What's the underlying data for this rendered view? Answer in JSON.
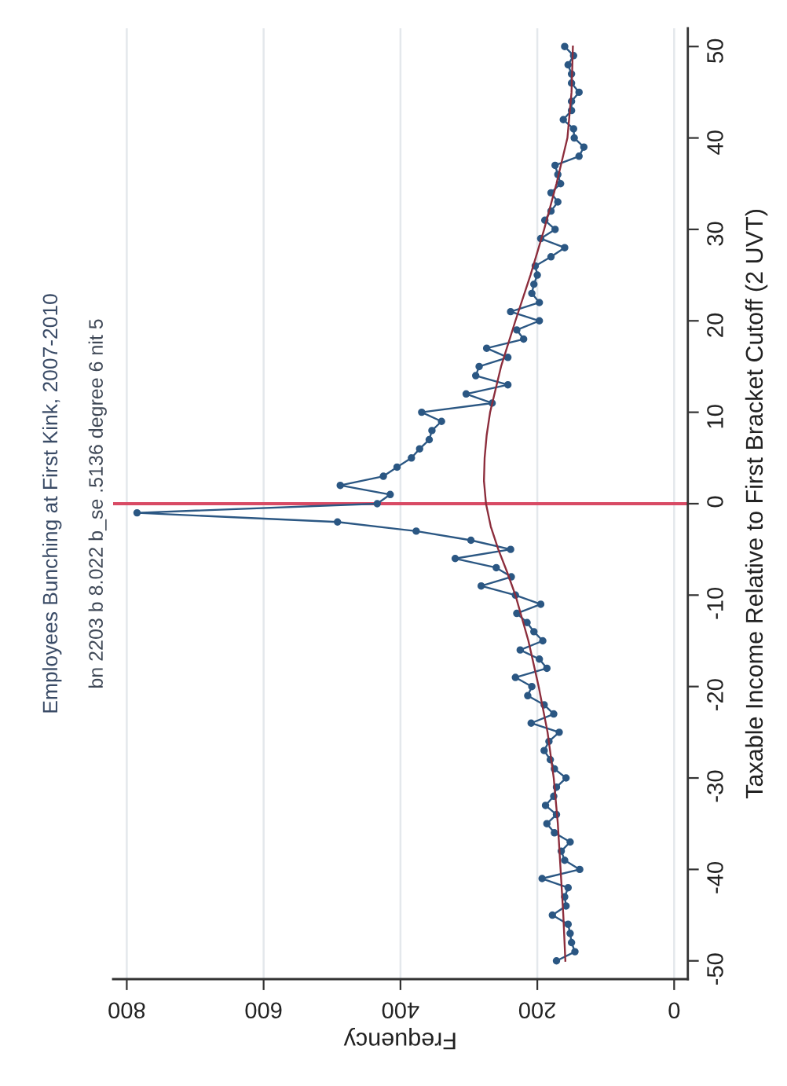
{
  "chart_data": {
    "type": "line",
    "title": "Employees Bunching at First Kink, 2007-2010",
    "subtitle": "bn 2203 b 8.022 b_se .5136 degree 6 nit 5",
    "xlabel": "Frequency",
    "ylabel": "Taxable Income Relative to First Bracket Cutoff (2 UVT)",
    "xlim": [
      820,
      -20
    ],
    "xticks": [
      0,
      200,
      400,
      600,
      800
    ],
    "ylim": [
      -52,
      52
    ],
    "yticks": [
      -50,
      -40,
      -30,
      -20,
      -10,
      0,
      10,
      20,
      30,
      40,
      50
    ],
    "grid": "x",
    "series": [
      {
        "color": "#2b5783",
        "marker": "circle",
        "x": [
          172,
          145,
          150,
          152,
          155,
          178,
          158,
          160,
          155,
          193,
          138,
          160,
          165,
          152,
          175,
          186,
          172,
          188,
          176,
          172,
          158,
          175,
          181,
          190,
          183,
          168,
          209,
          176,
          190,
          214,
          208,
          232,
          186,
          197,
          225,
          192,
          205,
          215,
          230,
          195,
          232,
          282,
          238,
          260,
          320,
          239,
          297,
          377,
          492,
          785,
          434,
          415,
          488,
          425,
          405,
          384,
          372,
          358,
          354,
          340,
          369,
          266,
          304,
          243,
          290,
          285,
          243,
          274,
          220,
          230,
          197,
          239,
          197,
          208,
          205,
          200,
          203,
          180,
          160,
          195,
          174,
          189,
          180,
          170,
          180,
          166,
          170,
          174,
          139,
          132,
          146,
          147,
          162,
          150,
          150,
          139,
          150,
          150,
          155,
          147,
          160
        ],
        "values": [
          -50,
          -49,
          -48,
          -47,
          -46,
          -45,
          -44,
          -43,
          -42,
          -41,
          -40,
          -39,
          -38,
          -37,
          -36,
          -35,
          -34,
          -33,
          -32,
          -31,
          -30,
          -29,
          -28,
          -27,
          -26,
          -25,
          -24,
          -23,
          -22,
          -21,
          -20,
          -19,
          -18,
          -17,
          -16,
          -15,
          -14,
          -13,
          -12,
          -11,
          -10,
          -9,
          -8,
          -7,
          -6,
          -5,
          -4,
          -3,
          -2,
          -1,
          0,
          1,
          2,
          3,
          4,
          5,
          6,
          7,
          8,
          9,
          10,
          11,
          12,
          13,
          14,
          15,
          16,
          17,
          18,
          19,
          20,
          21,
          22,
          23,
          24,
          25,
          26,
          27,
          28,
          29,
          30,
          31,
          32,
          33,
          34,
          35,
          36,
          37,
          38,
          39,
          40,
          41,
          42,
          43,
          44,
          45,
          46,
          47,
          48,
          49,
          50
        ]
      },
      {
        "color": "#8c2d3c",
        "marker": "none",
        "x": [
          159,
          162,
          166,
          170,
          176,
          185,
          198,
          213,
          232,
          244,
          257,
          268,
          275,
          278,
          277,
          274,
          269,
          253,
          232,
          210,
          190,
          172,
          156,
          150,
          148
        ],
        "values": [
          -50,
          -45,
          -40,
          -35,
          -30,
          -25,
          -20,
          -15,
          -10,
          -7.5,
          -5,
          -2.5,
          0,
          2.5,
          5,
          7.5,
          10,
          15,
          20,
          25,
          30,
          35,
          40,
          45,
          50
        ]
      }
    ],
    "ref_lines": [
      {
        "axis": "y",
        "value": 0,
        "color": "#d84a64"
      }
    ]
  }
}
